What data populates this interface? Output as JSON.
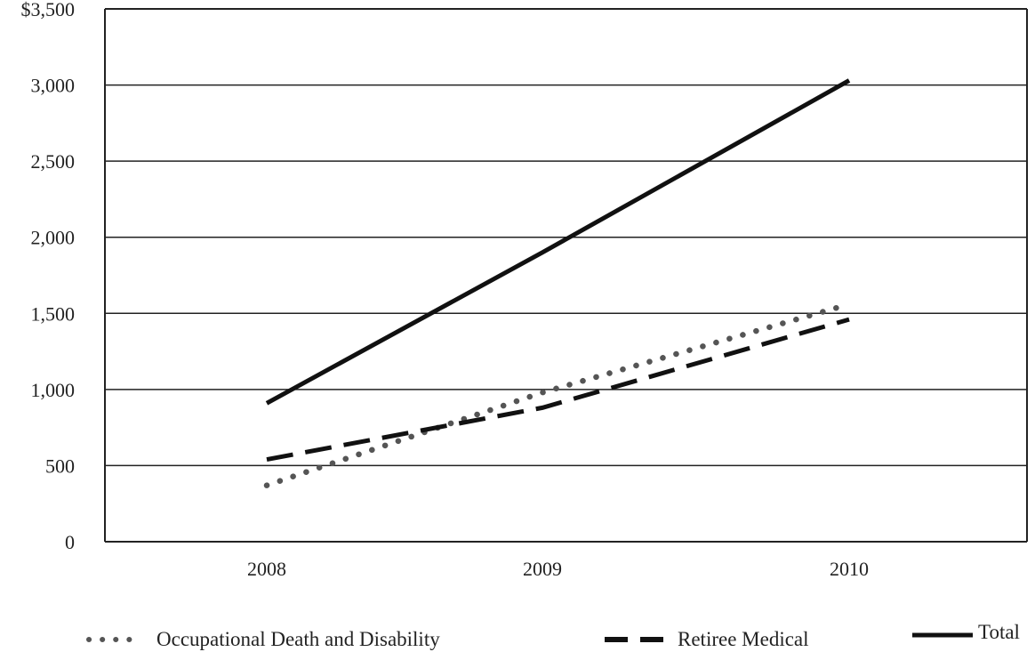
{
  "chart_data": {
    "type": "line",
    "title": "",
    "xlabel": "",
    "ylabel": "",
    "categories": [
      "2008",
      "2009",
      "2010"
    ],
    "ylim": [
      0,
      3500
    ],
    "yticks": [
      {
        "value": 0,
        "label": "0"
      },
      {
        "value": 500,
        "label": "500"
      },
      {
        "value": 1000,
        "label": "1,000"
      },
      {
        "value": 1500,
        "label": "1,500"
      },
      {
        "value": 2000,
        "label": "2,000"
      },
      {
        "value": 2500,
        "label": "2,500"
      },
      {
        "value": 3000,
        "label": "3,000"
      },
      {
        "value": 3500,
        "label": "$3,500"
      }
    ],
    "grid": true,
    "legend_position": "bottom",
    "series": [
      {
        "name": "Occupational Death and Disability",
        "style": "dotted",
        "color": "#555555",
        "values": [
          370,
          980,
          1560
        ]
      },
      {
        "name": "Retiree Medical",
        "style": "dashed",
        "color": "#111111",
        "values": [
          540,
          880,
          1460
        ]
      },
      {
        "name": "Total",
        "style": "solid",
        "color": "#111111",
        "values": [
          910,
          1900,
          3030
        ]
      }
    ]
  }
}
